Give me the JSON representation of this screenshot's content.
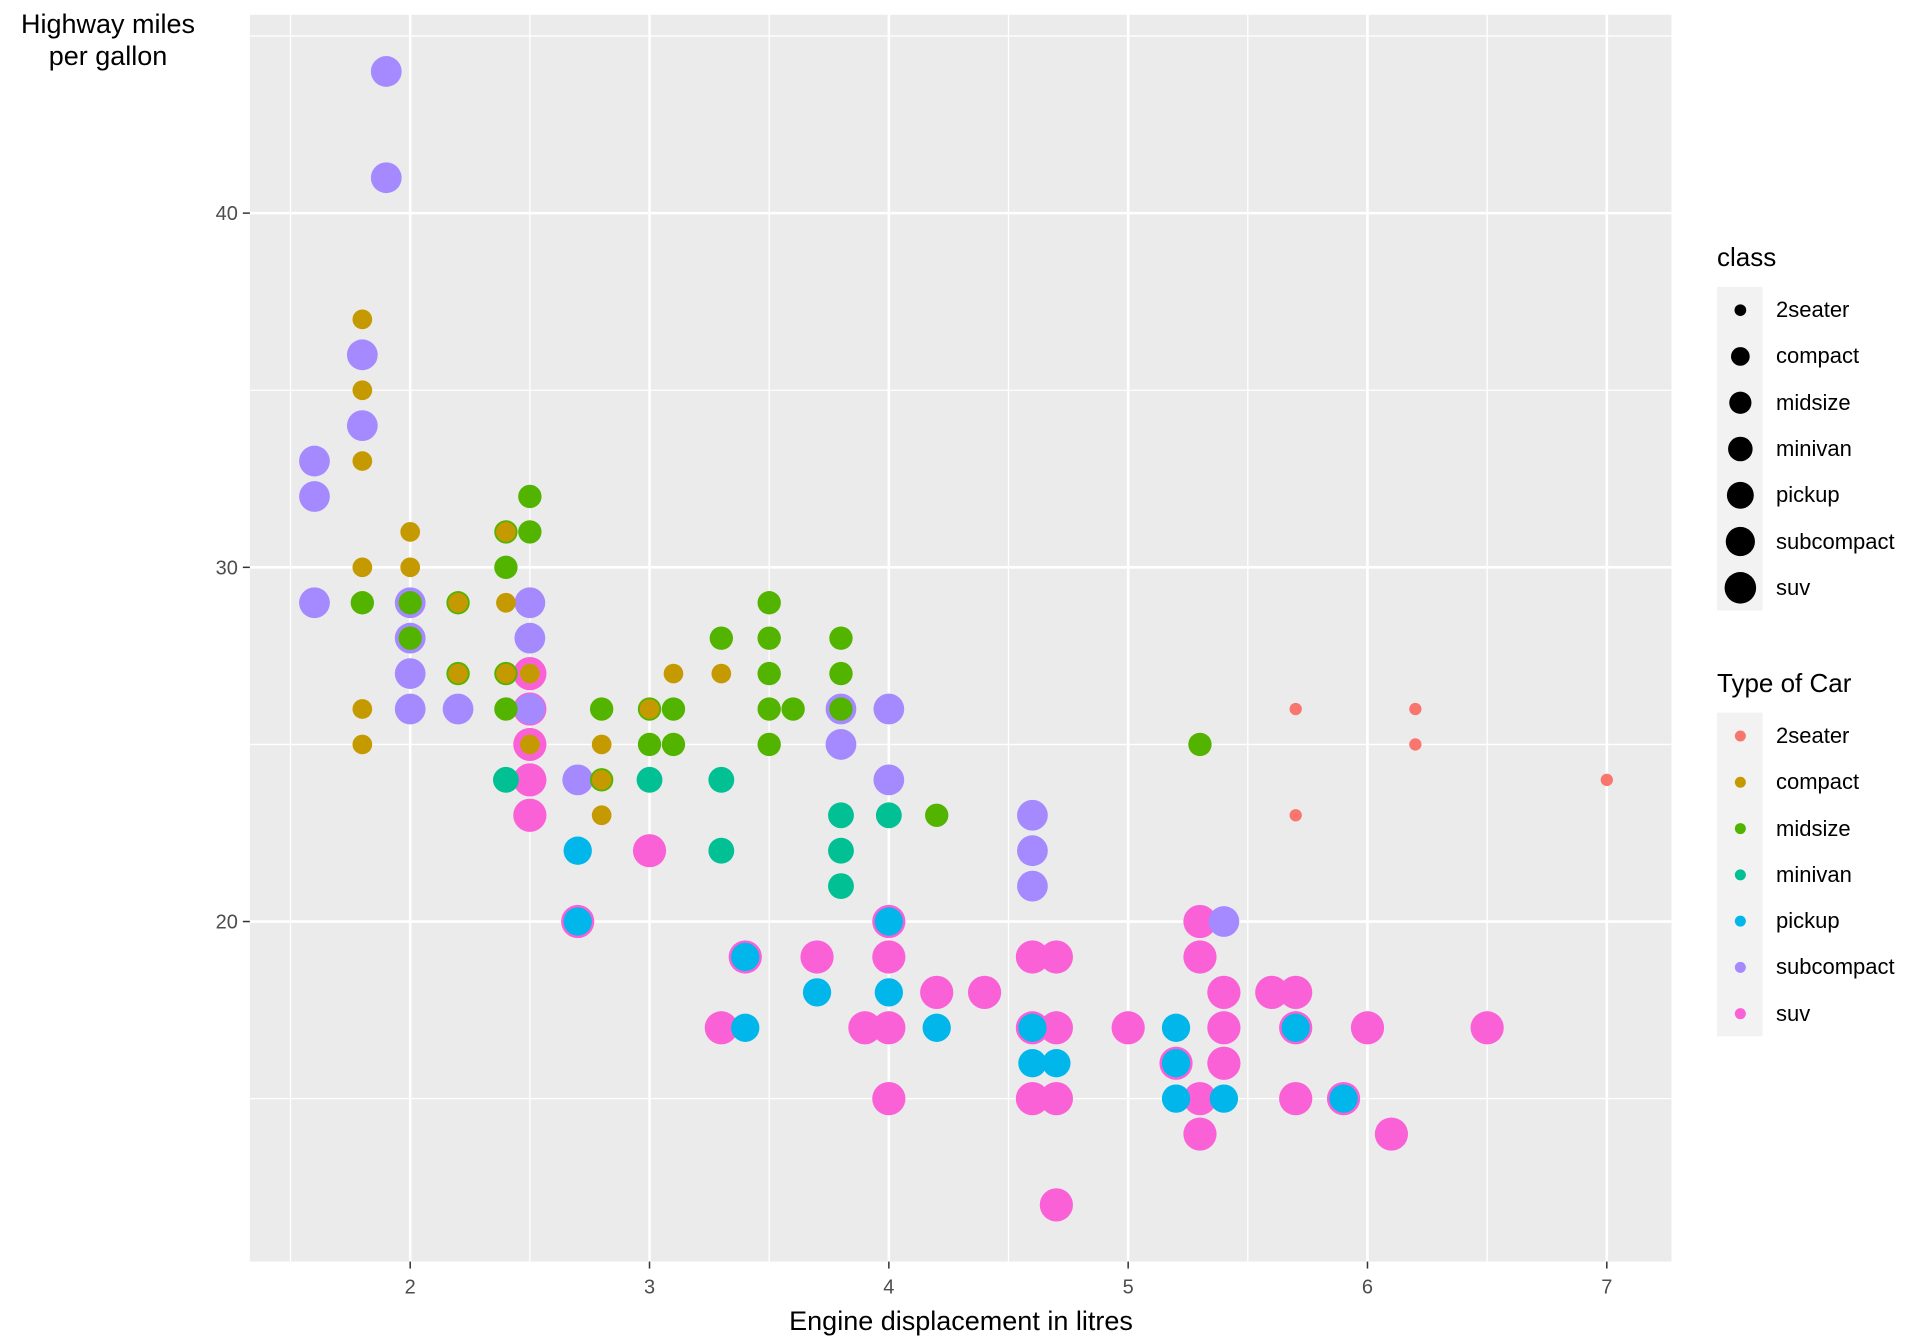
{
  "chart_data": {
    "type": "scatter",
    "xlabel": "Engine displacement in litres",
    "ylabel": "Highway miles per gallon",
    "xlim": [
      1.33,
      7.27
    ],
    "ylim": [
      10.4,
      45.6
    ],
    "x_ticks": [
      2,
      3,
      4,
      5,
      6,
      7
    ],
    "y_ticks": [
      20,
      30,
      40
    ],
    "grid": true,
    "legend_position": "right",
    "size_legend": {
      "title": "class",
      "entries": [
        "2seater",
        "compact",
        "midsize",
        "minivan",
        "pickup",
        "subcompact",
        "suv"
      ]
    },
    "color_legend": {
      "title": "Type of Car",
      "entries": [
        "2seater",
        "compact",
        "midsize",
        "minivan",
        "pickup",
        "subcompact",
        "suv"
      ]
    },
    "colors": {
      "2seater": "#F8766D",
      "compact": "#C49A00",
      "midsize": "#53B400",
      "minivan": "#00C094",
      "pickup": "#00B6EB",
      "subcompact": "#A58AFF",
      "suv": "#FB61D7"
    },
    "series": [
      {
        "name": "suv",
        "points": [
          [
            2.5,
            27
          ],
          [
            2.5,
            26
          ],
          [
            2.5,
            25
          ],
          [
            2.5,
            24
          ],
          [
            2.5,
            23
          ],
          [
            2.7,
            20
          ],
          [
            3,
            22
          ],
          [
            3.3,
            17
          ],
          [
            3.4,
            19
          ],
          [
            3.7,
            19
          ],
          [
            3.9,
            17
          ],
          [
            4,
            20
          ],
          [
            4,
            19
          ],
          [
            4,
            17
          ],
          [
            4,
            15
          ],
          [
            4.2,
            18
          ],
          [
            4.4,
            18
          ],
          [
            4.6,
            19
          ],
          [
            4.6,
            17
          ],
          [
            4.6,
            15
          ],
          [
            4.7,
            19
          ],
          [
            4.7,
            17
          ],
          [
            4.7,
            15
          ],
          [
            4.7,
            12
          ],
          [
            5,
            17
          ],
          [
            5.2,
            16
          ],
          [
            5.3,
            20
          ],
          [
            5.3,
            19
          ],
          [
            5.3,
            15
          ],
          [
            5.3,
            14
          ],
          [
            5.4,
            18
          ],
          [
            5.4,
            17
          ],
          [
            5.4,
            16
          ],
          [
            5.6,
            18
          ],
          [
            5.7,
            18
          ],
          [
            5.7,
            17
          ],
          [
            5.7,
            15
          ],
          [
            5.9,
            15
          ],
          [
            6,
            17
          ],
          [
            6.1,
            14
          ],
          [
            6.5,
            17
          ]
        ]
      },
      {
        "name": "pickup",
        "points": [
          [
            2.7,
            22
          ],
          [
            2.7,
            20
          ],
          [
            3.4,
            19
          ],
          [
            3.4,
            17
          ],
          [
            3.7,
            18
          ],
          [
            4,
            20
          ],
          [
            4,
            18
          ],
          [
            4.2,
            17
          ],
          [
            4.6,
            17
          ],
          [
            4.6,
            16
          ],
          [
            4.7,
            16
          ],
          [
            5.2,
            17
          ],
          [
            5.2,
            16
          ],
          [
            5.2,
            15
          ],
          [
            5.4,
            15
          ],
          [
            5.7,
            17
          ],
          [
            5.9,
            15
          ]
        ]
      },
      {
        "name": "subcompact",
        "points": [
          [
            1.6,
            33
          ],
          [
            1.6,
            32
          ],
          [
            1.6,
            29
          ],
          [
            1.8,
            36
          ],
          [
            1.8,
            34
          ],
          [
            1.9,
            44
          ],
          [
            1.9,
            41
          ],
          [
            2,
            29
          ],
          [
            2,
            28
          ],
          [
            2,
            27
          ],
          [
            2,
            26
          ],
          [
            2.2,
            26
          ],
          [
            2.5,
            29
          ],
          [
            2.5,
            28
          ],
          [
            2.5,
            26
          ],
          [
            2.7,
            24
          ],
          [
            3.8,
            26
          ],
          [
            3.8,
            25
          ],
          [
            4,
            26
          ],
          [
            4,
            24
          ],
          [
            4.6,
            23
          ],
          [
            4.6,
            22
          ],
          [
            4.6,
            21
          ],
          [
            5.4,
            20
          ]
        ]
      },
      {
        "name": "minivan",
        "points": [
          [
            2.4,
            24
          ],
          [
            3,
            24
          ],
          [
            3.3,
            24
          ],
          [
            3.3,
            22
          ],
          [
            3.8,
            23
          ],
          [
            3.8,
            22
          ],
          [
            3.8,
            21
          ],
          [
            4,
            23
          ]
        ]
      },
      {
        "name": "midsize",
        "points": [
          [
            1.8,
            29
          ],
          [
            2,
            29
          ],
          [
            2,
            28
          ],
          [
            2.2,
            29
          ],
          [
            2.2,
            27
          ],
          [
            2.4,
            31
          ],
          [
            2.4,
            30
          ],
          [
            2.4,
            27
          ],
          [
            2.4,
            26
          ],
          [
            2.5,
            32
          ],
          [
            2.5,
            31
          ],
          [
            2.8,
            26
          ],
          [
            2.8,
            24
          ],
          [
            3,
            26
          ],
          [
            3,
            25
          ],
          [
            3.1,
            26
          ],
          [
            3.1,
            25
          ],
          [
            3.3,
            28
          ],
          [
            3.5,
            29
          ],
          [
            3.5,
            28
          ],
          [
            3.5,
            27
          ],
          [
            3.5,
            26
          ],
          [
            3.5,
            25
          ],
          [
            3.6,
            26
          ],
          [
            3.8,
            28
          ],
          [
            3.8,
            27
          ],
          [
            3.8,
            26
          ],
          [
            4.2,
            23
          ],
          [
            5.3,
            25
          ]
        ]
      },
      {
        "name": "compact",
        "points": [
          [
            1.8,
            37
          ],
          [
            1.8,
            35
          ],
          [
            1.8,
            33
          ],
          [
            1.8,
            30
          ],
          [
            1.8,
            26
          ],
          [
            1.8,
            25
          ],
          [
            2,
            31
          ],
          [
            2,
            30
          ],
          [
            2.2,
            29
          ],
          [
            2.2,
            27
          ],
          [
            2.4,
            31
          ],
          [
            2.4,
            29
          ],
          [
            2.4,
            27
          ],
          [
            2.5,
            27
          ],
          [
            2.5,
            25
          ],
          [
            2.8,
            25
          ],
          [
            2.8,
            24
          ],
          [
            2.8,
            23
          ],
          [
            3,
            26
          ],
          [
            3.1,
            27
          ],
          [
            3.3,
            27
          ]
        ]
      },
      {
        "name": "2seater",
        "points": [
          [
            5.7,
            26
          ],
          [
            5.7,
            23
          ],
          [
            6.2,
            26
          ],
          [
            6.2,
            25
          ],
          [
            7,
            24
          ]
        ]
      }
    ]
  }
}
